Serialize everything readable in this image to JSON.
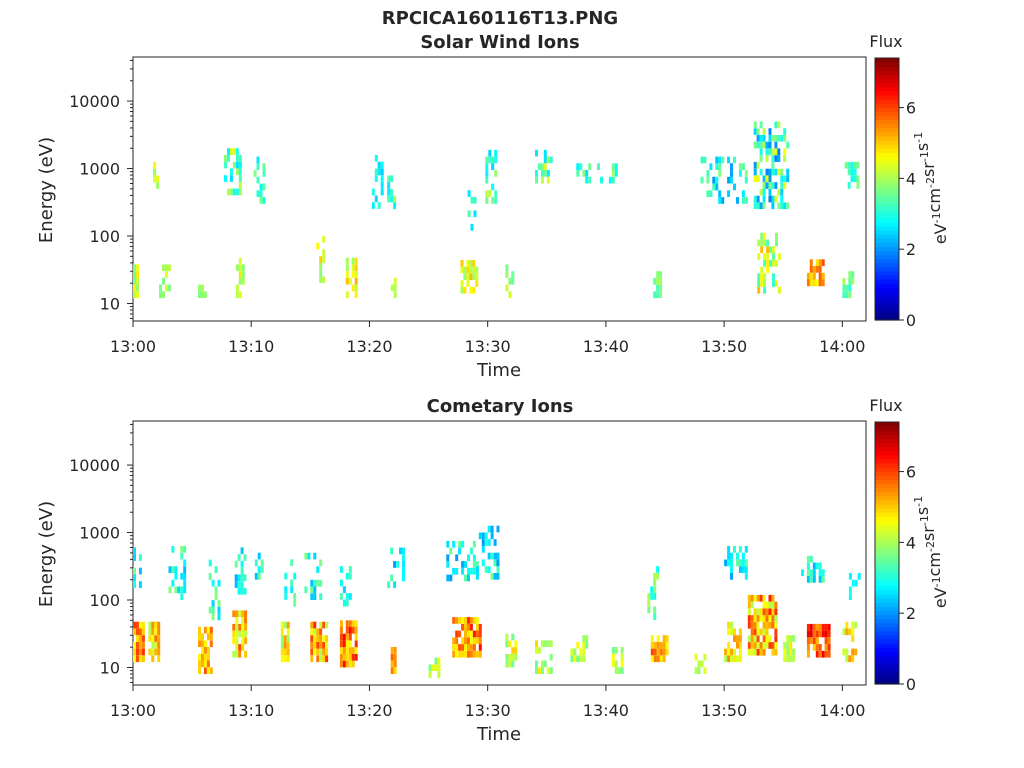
{
  "figure_title": "RPCICA160116T13.PNG",
  "colorbar_title": "Flux",
  "colorbar_unit_parts": [
    "eV",
    "-1",
    "cm",
    "-2",
    "sr",
    "-1",
    "s",
    "-1"
  ],
  "chart_data": [
    {
      "type": "heatmap",
      "title": "Solar Wind Ions",
      "xlabel": "Time",
      "ylabel": "Energy (eV)",
      "x_ticks": [
        "13:00",
        "13:10",
        "13:20",
        "13:30",
        "13:40",
        "13:50",
        "14:00"
      ],
      "x_range_minutes": [
        0,
        62
      ],
      "y_ticks": [
        "10",
        "100",
        "1000",
        "10000"
      ],
      "y_scale": "log",
      "y_range": [
        5.5,
        45000
      ],
      "colorbar": {
        "label": "Flux",
        "range": [
          0,
          7.4
        ],
        "ticks": [
          "0",
          "2",
          "4",
          "6"
        ],
        "colormap": "jet"
      },
      "clusters": [
        {
          "t": [
            0.0,
            0.5
          ],
          "e": [
            12,
            32
          ],
          "v": [
            3.5,
            4.8
          ],
          "density": 0.9
        },
        {
          "t": [
            1.7,
            2.1
          ],
          "e": [
            500,
            1100
          ],
          "v": [
            3.5,
            5.0
          ],
          "density": 0.6
        },
        {
          "t": [
            2.2,
            3.0
          ],
          "e": [
            12,
            32
          ],
          "v": [
            3.5,
            4.5
          ],
          "density": 0.7
        },
        {
          "t": [
            5.5,
            6.2
          ],
          "e": [
            12,
            16
          ],
          "v": [
            3.5,
            4.0
          ],
          "density": 0.9
        },
        {
          "t": [
            7.7,
            9.2
          ],
          "e": [
            400,
            2000
          ],
          "v": [
            2.5,
            4.5
          ],
          "density": 0.5
        },
        {
          "t": [
            8.7,
            9.3
          ],
          "e": [
            12,
            40
          ],
          "v": [
            3.5,
            4.8
          ],
          "density": 0.7
        },
        {
          "t": [
            10.2,
            11.0
          ],
          "e": [
            300,
            1500
          ],
          "v": [
            2.5,
            3.8
          ],
          "density": 0.5
        },
        {
          "t": [
            15.5,
            16.2
          ],
          "e": [
            20,
            80
          ],
          "v": [
            3.5,
            5.0
          ],
          "density": 0.5
        },
        {
          "t": [
            18.0,
            19.0
          ],
          "e": [
            12,
            40
          ],
          "v": [
            3.8,
            5.2
          ],
          "density": 0.6
        },
        {
          "t": [
            20.2,
            21.0
          ],
          "e": [
            200,
            1500
          ],
          "v": [
            2.3,
            3.6
          ],
          "density": 0.4
        },
        {
          "t": [
            21.5,
            22.4
          ],
          "e": [
            250,
            700
          ],
          "v": [
            2.5,
            4.0
          ],
          "density": 0.6
        },
        {
          "t": [
            21.8,
            22.2
          ],
          "e": [
            12,
            22
          ],
          "v": [
            3.8,
            4.5
          ],
          "density": 0.9
        },
        {
          "t": [
            27.7,
            29.2
          ],
          "e": [
            14,
            40
          ],
          "v": [
            3.8,
            5.2
          ],
          "density": 0.8
        },
        {
          "t": [
            28.3,
            29.0
          ],
          "e": [
            120,
            400
          ],
          "v": [
            2.5,
            3.5
          ],
          "density": 0.4
        },
        {
          "t": [
            29.8,
            30.8
          ],
          "e": [
            300,
            1600
          ],
          "v": [
            2.3,
            4.5
          ],
          "density": 0.4
        },
        {
          "t": [
            31.5,
            32.2
          ],
          "e": [
            12,
            35
          ],
          "v": [
            3.5,
            4.5
          ],
          "density": 0.6
        },
        {
          "t": [
            34.0,
            35.5
          ],
          "e": [
            600,
            1600
          ],
          "v": [
            2.5,
            4.5
          ],
          "density": 0.5
        },
        {
          "t": [
            37.0,
            41.0
          ],
          "e": [
            600,
            1100
          ],
          "v": [
            2.5,
            4.0
          ],
          "density": 0.3
        },
        {
          "t": [
            44.0,
            44.7
          ],
          "e": [
            12,
            28
          ],
          "v": [
            3.2,
            4.0
          ],
          "density": 0.9
        },
        {
          "t": [
            48.0,
            52.0
          ],
          "e": [
            300,
            1500
          ],
          "v": [
            2.0,
            3.8
          ],
          "density": 0.4
        },
        {
          "t": [
            52.5,
            55.5
          ],
          "e": [
            250,
            4500
          ],
          "v": [
            1.8,
            4.6
          ],
          "density": 0.6
        },
        {
          "t": [
            52.8,
            54.8
          ],
          "e": [
            14,
            100
          ],
          "v": [
            3.0,
            5.2
          ],
          "density": 0.5
        },
        {
          "t": [
            57.0,
            58.5
          ],
          "e": [
            18,
            40
          ],
          "v": [
            4.5,
            6.0
          ],
          "density": 0.8
        },
        {
          "t": [
            60.0,
            61.0
          ],
          "e": [
            12,
            30
          ],
          "v": [
            3.0,
            4.0
          ],
          "density": 0.6
        },
        {
          "t": [
            60.2,
            61.3
          ],
          "e": [
            500,
            1100
          ],
          "v": [
            2.5,
            3.8
          ],
          "density": 0.5
        }
      ]
    },
    {
      "type": "heatmap",
      "title": "Cometary Ions",
      "xlabel": "Time",
      "ylabel": "Energy (eV)",
      "x_ticks": [
        "13:00",
        "13:10",
        "13:20",
        "13:30",
        "13:40",
        "13:50",
        "14:00"
      ],
      "x_range_minutes": [
        0,
        62
      ],
      "y_ticks": [
        "10",
        "100",
        "1000",
        "10000"
      ],
      "y_scale": "log",
      "y_range": [
        5.5,
        45000
      ],
      "colorbar": {
        "label": "Flux",
        "range": [
          0,
          7.4
        ],
        "ticks": [
          "0",
          "2",
          "4",
          "6"
        ],
        "colormap": "jet"
      },
      "clusters": [
        {
          "t": [
            0.0,
            0.9
          ],
          "e": [
            12,
            40
          ],
          "v": [
            4.5,
            6.3
          ],
          "density": 0.9
        },
        {
          "t": [
            0.0,
            0.6
          ],
          "e": [
            120,
            550
          ],
          "v": [
            2.3,
            3.8
          ],
          "density": 0.4
        },
        {
          "t": [
            1.3,
            2.3
          ],
          "e": [
            12,
            40
          ],
          "v": [
            4.0,
            5.8
          ],
          "density": 0.9
        },
        {
          "t": [
            3.0,
            4.3
          ],
          "e": [
            100,
            600
          ],
          "v": [
            2.2,
            3.8
          ],
          "density": 0.4
        },
        {
          "t": [
            5.5,
            6.6
          ],
          "e": [
            8,
            40
          ],
          "v": [
            4.5,
            6.0
          ],
          "density": 0.8
        },
        {
          "t": [
            6.4,
            7.3
          ],
          "e": [
            50,
            500
          ],
          "v": [
            2.3,
            4.0
          ],
          "density": 0.35
        },
        {
          "t": [
            8.4,
            9.6
          ],
          "e": [
            14,
            60
          ],
          "v": [
            4.0,
            6.0
          ],
          "density": 0.8
        },
        {
          "t": [
            8.6,
            9.4
          ],
          "e": [
            120,
            500
          ],
          "v": [
            2.0,
            3.6
          ],
          "density": 0.4
        },
        {
          "t": [
            9.8,
            11.0
          ],
          "e": [
            200,
            550
          ],
          "v": [
            2.2,
            3.5
          ],
          "density": 0.4
        },
        {
          "t": [
            12.5,
            13.2
          ],
          "e": [
            12,
            40
          ],
          "v": [
            3.8,
            5.5
          ],
          "density": 0.8
        },
        {
          "t": [
            12.8,
            13.8
          ],
          "e": [
            80,
            400
          ],
          "v": [
            2.5,
            3.8
          ],
          "density": 0.35
        },
        {
          "t": [
            15.0,
            16.5
          ],
          "e": [
            12,
            45
          ],
          "v": [
            4.0,
            6.3
          ],
          "density": 0.8
        },
        {
          "t": [
            14.5,
            15.8
          ],
          "e": [
            100,
            450
          ],
          "v": [
            2.3,
            3.8
          ],
          "density": 0.4
        },
        {
          "t": [
            17.5,
            19.0
          ],
          "e": [
            10,
            45
          ],
          "v": [
            4.5,
            6.5
          ],
          "density": 0.85
        },
        {
          "t": [
            17.5,
            18.5
          ],
          "e": [
            80,
            300
          ],
          "v": [
            2.3,
            3.5
          ],
          "density": 0.35
        },
        {
          "t": [
            21.8,
            22.3
          ],
          "e": [
            8,
            20
          ],
          "v": [
            4.8,
            6.3
          ],
          "density": 0.9
        },
        {
          "t": [
            21.5,
            23.0
          ],
          "e": [
            150,
            600
          ],
          "v": [
            2.0,
            3.5
          ],
          "density": 0.4
        },
        {
          "t": [
            25.0,
            26.0
          ],
          "e": [
            7,
            12
          ],
          "v": [
            3.5,
            4.5
          ],
          "density": 0.6
        },
        {
          "t": [
            27.0,
            29.5
          ],
          "e": [
            14,
            45
          ],
          "v": [
            4.5,
            6.5
          ],
          "density": 0.85
        },
        {
          "t": [
            26.5,
            29.2
          ],
          "e": [
            150,
            700
          ],
          "v": [
            2.0,
            3.6
          ],
          "density": 0.4
        },
        {
          "t": [
            29.0,
            31.0
          ],
          "e": [
            200,
            1200
          ],
          "v": [
            2.0,
            3.8
          ],
          "density": 0.35
        },
        {
          "t": [
            31.5,
            32.5
          ],
          "e": [
            10,
            30
          ],
          "v": [
            3.5,
            5.0
          ],
          "density": 0.7
        },
        {
          "t": [
            34.0,
            35.3
          ],
          "e": [
            8,
            25
          ],
          "v": [
            3.5,
            5.0
          ],
          "density": 0.6
        },
        {
          "t": [
            37.0,
            38.5
          ],
          "e": [
            12,
            30
          ],
          "v": [
            3.5,
            4.8
          ],
          "density": 0.6
        },
        {
          "t": [
            40.5,
            41.5
          ],
          "e": [
            8,
            20
          ],
          "v": [
            3.5,
            4.8
          ],
          "density": 0.6
        },
        {
          "t": [
            43.5,
            44.5
          ],
          "e": [
            40,
            300
          ],
          "v": [
            2.5,
            4.2
          ],
          "density": 0.45
        },
        {
          "t": [
            43.8,
            45.2
          ],
          "e": [
            12,
            30
          ],
          "v": [
            4.5,
            6.0
          ],
          "density": 0.85
        },
        {
          "t": [
            47.5,
            48.5
          ],
          "e": [
            8,
            15
          ],
          "v": [
            3.5,
            4.5
          ],
          "density": 0.6
        },
        {
          "t": [
            50.0,
            52.0
          ],
          "e": [
            200,
            600
          ],
          "v": [
            2.0,
            3.5
          ],
          "density": 0.45
        },
        {
          "t": [
            50.0,
            51.5
          ],
          "e": [
            12,
            40
          ],
          "v": [
            4.0,
            5.5
          ],
          "density": 0.6
        },
        {
          "t": [
            52.0,
            54.5
          ],
          "e": [
            15,
            100
          ],
          "v": [
            4.0,
            6.3
          ],
          "density": 0.8
        },
        {
          "t": [
            55.0,
            56.0
          ],
          "e": [
            12,
            25
          ],
          "v": [
            3.8,
            5.0
          ],
          "density": 0.7
        },
        {
          "t": [
            56.5,
            58.5
          ],
          "e": [
            180,
            450
          ],
          "v": [
            2.2,
            3.6
          ],
          "density": 0.4
        },
        {
          "t": [
            57.0,
            58.8
          ],
          "e": [
            14,
            40
          ],
          "v": [
            5.0,
            6.8
          ],
          "density": 0.9
        },
        {
          "t": [
            60.0,
            61.2
          ],
          "e": [
            12,
            45
          ],
          "v": [
            4.0,
            5.5
          ],
          "density": 0.75
        },
        {
          "t": [
            60.3,
            61.5
          ],
          "e": [
            100,
            220
          ],
          "v": [
            2.5,
            3.5
          ],
          "density": 0.4
        }
      ]
    }
  ]
}
